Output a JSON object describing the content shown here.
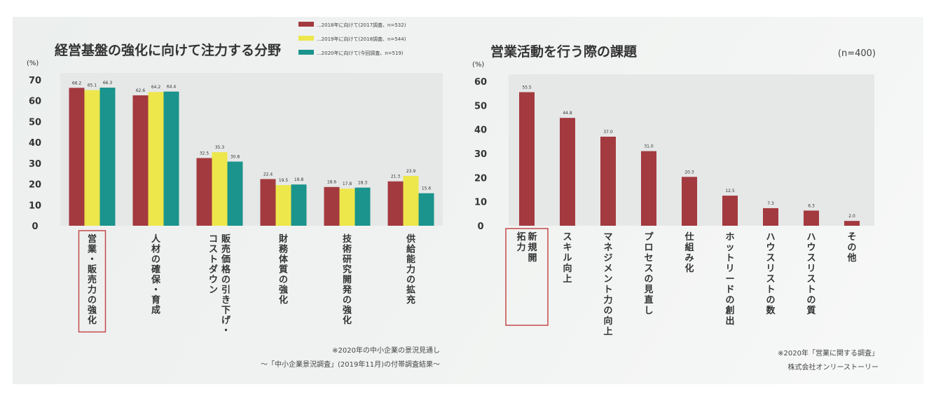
{
  "chart_data": [
    {
      "type": "bar",
      "title": "経営基盤の強化に向けて注力する分野",
      "ylabel": "(%)",
      "ylim": [
        0,
        70
      ],
      "yticks": [
        0,
        10,
        20,
        30,
        40,
        50,
        60,
        70
      ],
      "grid": false,
      "legend_position": "top-right",
      "categories": [
        "営業・販売力の強化",
        "人材の確保・育成",
        "販売価格の引き下げ・コストダウン",
        "財務体質の強化",
        "技術研究開発の強化",
        "供給能力の拡充"
      ],
      "series": [
        {
          "name": "...2018年に向けて(2017調査、n=532)",
          "color": "#a33a3f",
          "values": [
            66.2,
            62.6,
            32.5,
            22.4,
            18.6,
            21.3
          ]
        },
        {
          "name": "...2019年に向けて(2018調査、n=544)",
          "color": "#ede74b",
          "values": [
            65.1,
            64.2,
            35.3,
            19.5,
            17.8,
            23.9
          ]
        },
        {
          "name": "...2020年に向けて(今回調査、n=519)",
          "color": "#1a948c",
          "values": [
            66.3,
            64.4,
            30.8,
            19.8,
            18.3,
            15.6
          ]
        }
      ],
      "value_labels": [
        [
          "66.2",
          "65.1",
          "66.3"
        ],
        [
          "62.6",
          "64.2",
          "64.4"
        ],
        [
          "32.5",
          "35.3",
          "30.8"
        ],
        [
          "22.4",
          "19.5",
          "19.8"
        ],
        [
          "18.6",
          "17.8",
          "18.3"
        ],
        [
          "21.3",
          "23.9",
          "15.6"
        ]
      ],
      "highlighted_category": "営業・販売力の強化",
      "notes": [
        "※2020年の中小企業の景況見通し",
        "～「中小企業景況調査」(2019年11月)の付帯調査結果～"
      ]
    },
    {
      "type": "bar",
      "title": "営業活動を行う際の課題",
      "ylabel": "(%)",
      "sample_size": "(n=400)",
      "ylim": [
        0,
        60
      ],
      "yticks": [
        0,
        10,
        20,
        30,
        40,
        50,
        60
      ],
      "grid": false,
      "color": "#a33a3f",
      "categories": [
        "新規開拓力",
        "スキル向上",
        "マネジメント力の向上",
        "プロセスの見直し",
        "仕組み化",
        "ホットリードの創出",
        "ハウスリストの数",
        "ハウスリストの質",
        "その他"
      ],
      "values": [
        55.5,
        44.8,
        37.0,
        31.0,
        20.3,
        12.5,
        7.3,
        6.3,
        2.0
      ],
      "value_labels": [
        "55.5",
        "44.8",
        "37.0",
        "31.0",
        "20.3",
        "12.5",
        "7.3",
        "6.3",
        "2.0"
      ],
      "highlighted_category": "新規開拓力",
      "notes": [
        "※2020年「営業に関する調査」",
        "株式会社オンリーストーリー"
      ]
    }
  ]
}
